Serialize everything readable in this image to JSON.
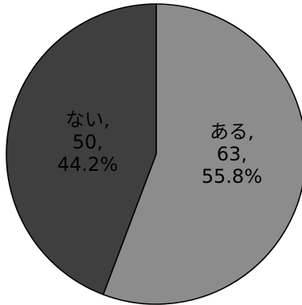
{
  "chart_data": {
    "type": "pie",
    "slices": [
      {
        "label": "ある",
        "value": 63,
        "percent": "55.8%",
        "label_lines": [
          "ある,",
          "63,",
          "55.8%"
        ],
        "color": "#8c8c8c"
      },
      {
        "label": "ない",
        "value": 50,
        "percent": "44.2%",
        "label_lines": [
          "ない,",
          "50,",
          "44.2%"
        ],
        "color": "#3f3f3f"
      }
    ],
    "start_angle": "12 o'clock",
    "direction": "clockwise",
    "legend": "none"
  }
}
